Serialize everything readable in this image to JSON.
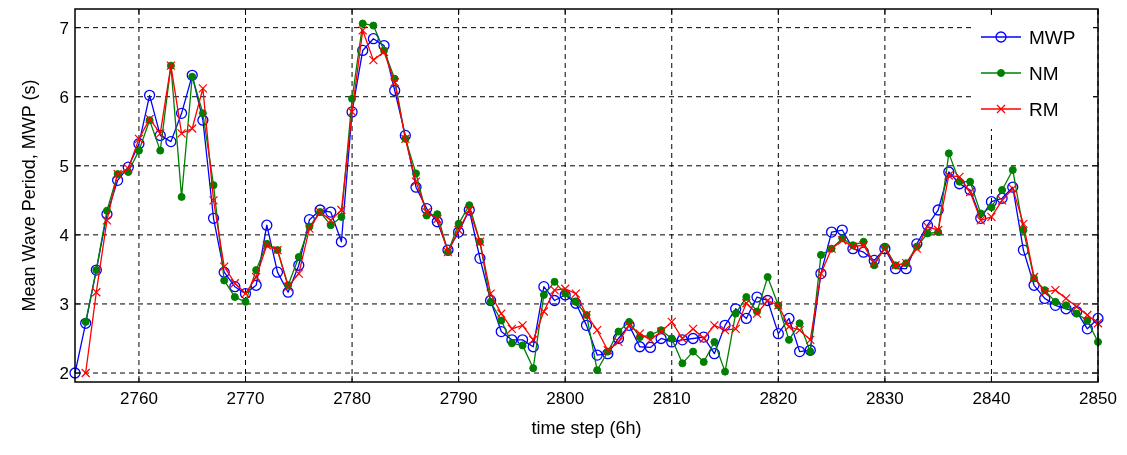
{
  "chart_data": {
    "type": "line",
    "xlabel": "time step (6h)",
    "ylabel": "Mean Wave Period, MWP (s)",
    "x": [
      2754,
      2755,
      2756,
      2757,
      2758,
      2759,
      2760,
      2761,
      2762,
      2763,
      2764,
      2765,
      2766,
      2767,
      2768,
      2769,
      2770,
      2771,
      2772,
      2773,
      2774,
      2775,
      2776,
      2777,
      2778,
      2779,
      2780,
      2781,
      2782,
      2783,
      2784,
      2785,
      2786,
      2787,
      2788,
      2789,
      2790,
      2791,
      2792,
      2793,
      2794,
      2795,
      2796,
      2797,
      2798,
      2799,
      2800,
      2801,
      2802,
      2803,
      2804,
      2805,
      2806,
      2807,
      2808,
      2809,
      2810,
      2811,
      2812,
      2813,
      2814,
      2815,
      2816,
      2817,
      2818,
      2819,
      2820,
      2821,
      2822,
      2823,
      2824,
      2825,
      2826,
      2827,
      2828,
      2829,
      2830,
      2831,
      2832,
      2833,
      2834,
      2835,
      2836,
      2837,
      2838,
      2839,
      2840,
      2841,
      2842,
      2843,
      2844,
      2845,
      2846,
      2847,
      2848,
      2849,
      2850
    ],
    "xlim": [
      2754,
      2850
    ],
    "xticks": [
      2760,
      2770,
      2780,
      2790,
      2800,
      2810,
      2820,
      2830,
      2840,
      2850
    ],
    "ylim": [
      1.87,
      7.27
    ],
    "yticks": [
      2,
      3,
      4,
      5,
      6,
      7
    ],
    "grid": true,
    "legend": "top right",
    "line_style": "solid",
    "series": [
      {
        "name": "MWP",
        "color": "#0000ff",
        "marker": "circle",
        "values": [
          2.0,
          2.72,
          3.49,
          4.3,
          4.79,
          4.98,
          5.32,
          6.02,
          5.44,
          5.35,
          5.76,
          6.31,
          5.66,
          4.24,
          3.46,
          3.25,
          3.15,
          3.27,
          4.14,
          3.46,
          3.17,
          3.56,
          4.22,
          4.36,
          4.33,
          3.9,
          5.78,
          6.67,
          6.84,
          6.74,
          6.09,
          5.44,
          4.69,
          4.38,
          4.19,
          3.78,
          4.04,
          4.36,
          3.66,
          3.05,
          2.6,
          2.48,
          2.48,
          2.38,
          3.25,
          3.05,
          3.13,
          3.01,
          2.69,
          2.26,
          2.28,
          2.5,
          2.69,
          2.38,
          2.37,
          2.5,
          2.45,
          2.48,
          2.5,
          2.52,
          2.28,
          2.69,
          2.93,
          2.79,
          3.1,
          3.05,
          2.57,
          2.79,
          2.31,
          2.33,
          3.44,
          4.04,
          4.07,
          3.8,
          3.75,
          3.63,
          3.8,
          3.51,
          3.51,
          3.87,
          4.14,
          4.36,
          4.91,
          4.74,
          4.65,
          4.24,
          4.48,
          4.53,
          4.69,
          3.78,
          3.27,
          3.08,
          2.98,
          2.93,
          2.89,
          2.64,
          2.79
        ]
      },
      {
        "name": "NM",
        "color": "#008000",
        "marker": "filled-circle",
        "values": [
          null,
          2.74,
          3.49,
          4.35,
          4.88,
          4.91,
          5.22,
          5.66,
          5.22,
          6.45,
          4.55,
          6.29,
          5.76,
          4.72,
          3.34,
          3.1,
          3.03,
          3.49,
          3.87,
          3.78,
          3.27,
          3.68,
          4.12,
          4.33,
          4.14,
          4.26,
          5.97,
          7.06,
          7.03,
          6.67,
          6.26,
          5.39,
          4.89,
          4.28,
          4.3,
          3.75,
          4.16,
          4.43,
          3.9,
          3.03,
          2.76,
          2.43,
          2.4,
          2.07,
          3.13,
          3.32,
          3.15,
          3.03,
          2.84,
          2.04,
          2.31,
          2.6,
          2.74,
          2.52,
          2.55,
          2.62,
          2.5,
          2.14,
          2.31,
          2.16,
          2.45,
          2.02,
          2.86,
          3.1,
          2.89,
          3.39,
          2.98,
          2.48,
          2.72,
          2.31,
          3.71,
          3.8,
          3.95,
          3.85,
          3.9,
          3.56,
          3.83,
          3.56,
          3.59,
          3.83,
          4.02,
          4.04,
          5.18,
          4.77,
          4.77,
          4.31,
          4.4,
          4.65,
          4.94,
          4.07,
          3.37,
          3.2,
          3.03,
          2.98,
          2.86,
          2.76,
          2.45
        ]
      },
      {
        "name": "RM",
        "color": "#ff0000",
        "marker": "cross",
        "values": [
          null,
          2.0,
          3.17,
          4.21,
          4.88,
          4.96,
          5.39,
          5.68,
          5.47,
          6.45,
          5.47,
          5.54,
          6.12,
          4.5,
          3.54,
          3.3,
          3.15,
          3.39,
          3.85,
          3.78,
          3.25,
          3.44,
          4.09,
          4.33,
          4.21,
          4.36,
          5.78,
          6.96,
          6.53,
          6.65,
          6.21,
          5.39,
          4.77,
          4.33,
          4.23,
          3.75,
          4.07,
          4.36,
          3.9,
          3.15,
          2.86,
          2.64,
          2.69,
          2.48,
          2.89,
          3.2,
          3.22,
          3.15,
          2.84,
          2.62,
          2.33,
          2.45,
          2.69,
          2.57,
          2.48,
          2.6,
          2.74,
          2.5,
          2.64,
          2.5,
          2.69,
          2.62,
          2.64,
          3.01,
          2.86,
          3.05,
          2.98,
          2.67,
          2.62,
          2.48,
          3.44,
          3.8,
          3.92,
          3.83,
          3.85,
          3.59,
          3.8,
          3.56,
          3.59,
          3.8,
          4.12,
          4.07,
          4.86,
          4.84,
          4.62,
          4.21,
          4.26,
          4.5,
          4.67,
          4.16,
          3.39,
          3.17,
          3.2,
          3.08,
          2.96,
          2.84,
          2.72
        ]
      }
    ]
  }
}
